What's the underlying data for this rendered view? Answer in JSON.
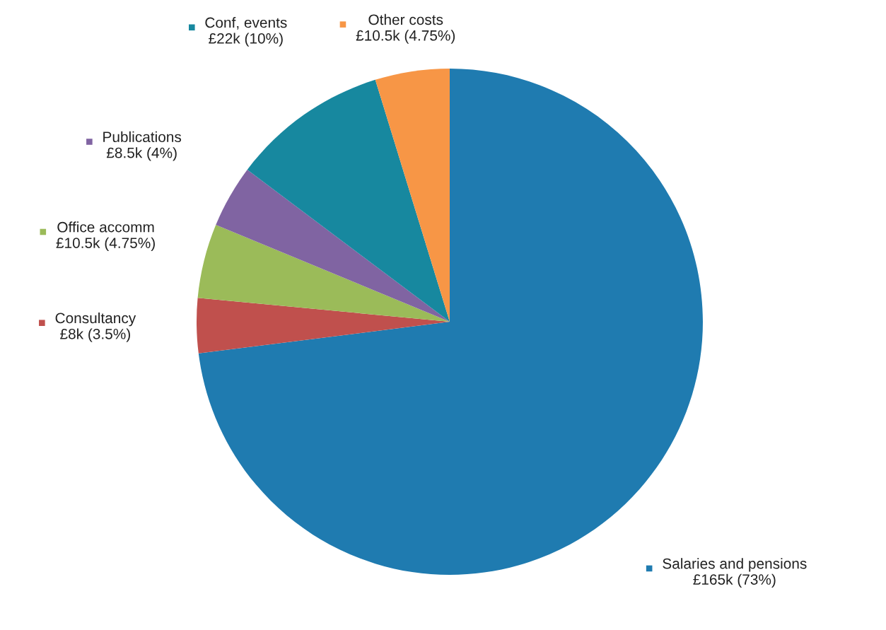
{
  "chart_data": {
    "type": "pie",
    "categories": [
      "Salaries and pensions",
      "Consultancy",
      "Office accomm",
      "Publications",
      "Conf, events",
      "Other costs"
    ],
    "values": [
      73,
      3.5,
      4.75,
      4,
      10,
      4.75
    ],
    "value_labels": [
      "£165k (73%)",
      "£8k (3.5%)",
      "£10.5k (4.75%)",
      "£8.5k (4%)",
      "£22k (10%)",
      "£10.5k (4.75%)"
    ],
    "colors": [
      "#1f7bb0",
      "#c0504d",
      "#9bbb59",
      "#8064a2",
      "#17889f",
      "#f79646"
    ],
    "legend": "top left"
  }
}
